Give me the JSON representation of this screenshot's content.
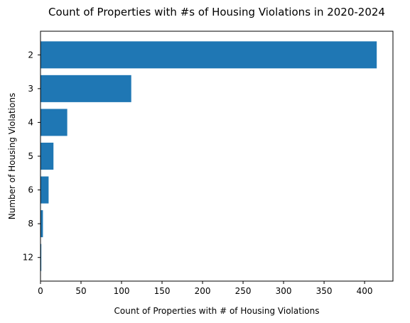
{
  "chart_data": {
    "type": "bar",
    "orientation": "horizontal",
    "title": "Count of Properties with #s of Housing Violations in 2020-2024",
    "xlabel": "Count of Properties with # of Housing Violations",
    "ylabel": "Number of Housing Violations",
    "categories": [
      "2",
      "3",
      "4",
      "5",
      "6",
      "8",
      "12"
    ],
    "values": [
      415,
      112,
      33,
      16,
      10,
      3,
      1
    ],
    "xlim": [
      0,
      435
    ],
    "xticks": [
      0,
      50,
      100,
      150,
      200,
      250,
      300,
      350,
      400
    ],
    "grid": false,
    "bar_color": "#1f77b4"
  }
}
